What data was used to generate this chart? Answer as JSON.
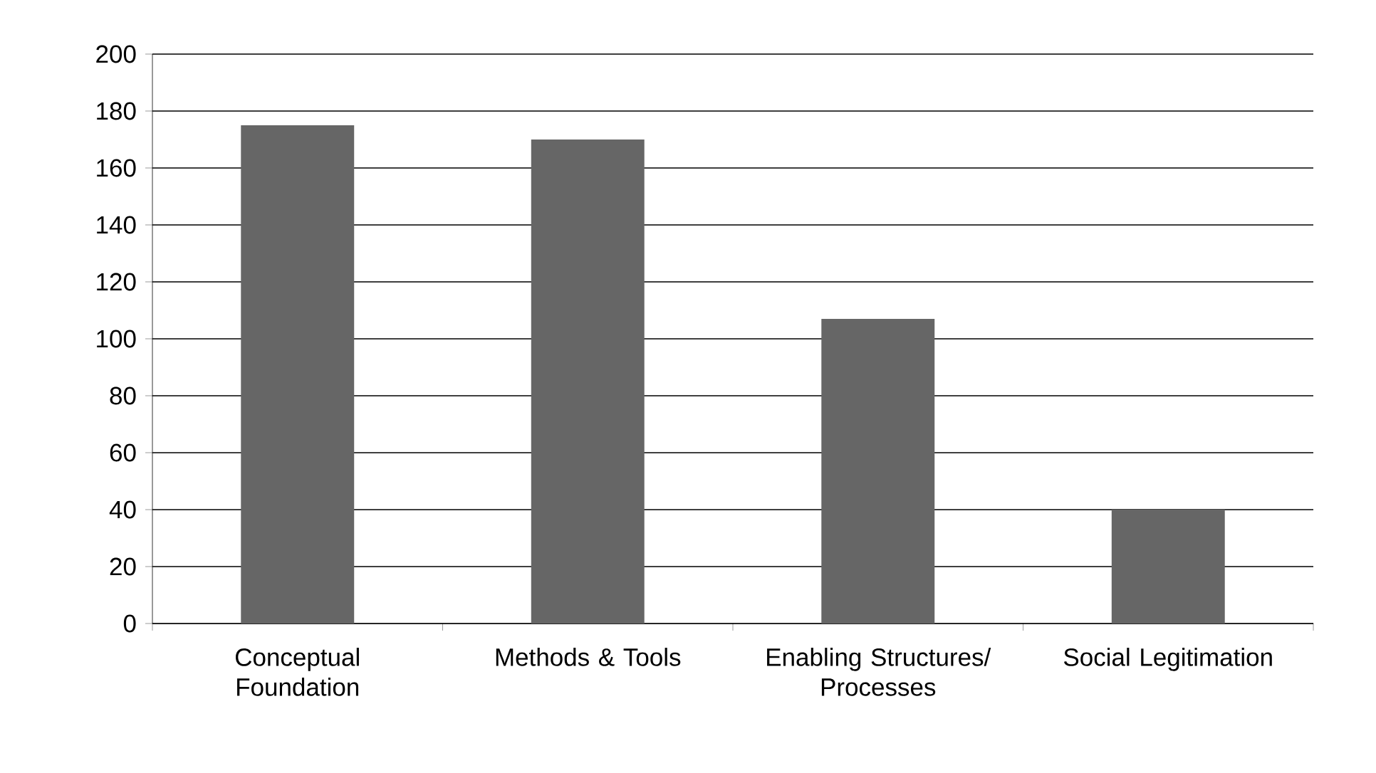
{
  "chart_data": {
    "type": "bar",
    "categories": [
      "Conceptual Foundation",
      "Methods & Tools",
      "Enabling Structures/ Processes",
      "Social Legitimation"
    ],
    "values": [
      175,
      170,
      107,
      40
    ],
    "color": "#666666",
    "ylim": [
      0,
      200
    ],
    "yticks": [
      0,
      20,
      40,
      60,
      80,
      100,
      120,
      140,
      160,
      180,
      200
    ],
    "grid": "y"
  }
}
